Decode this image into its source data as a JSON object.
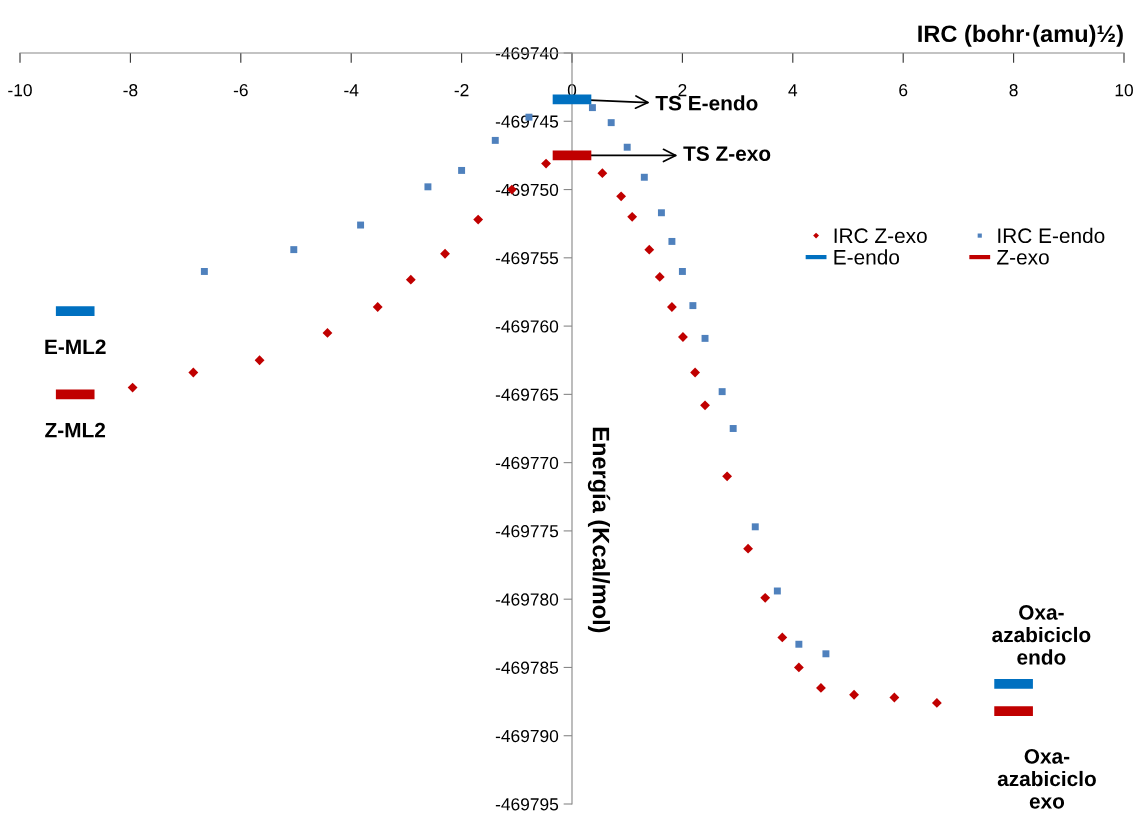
{
  "chart_data": {
    "type": "scatter",
    "xlabel": "IRC (bohr·(amu)½)",
    "ylabel": "Energía (Kcal/mol)",
    "xlim": [
      -10,
      10
    ],
    "xticks": [
      -10,
      -8,
      -6,
      -4,
      -2,
      0,
      2,
      4,
      6,
      8,
      10
    ],
    "ylim": [
      -469795,
      -469740
    ],
    "yticks": [
      -469795,
      -469790,
      -469785,
      -469780,
      -469775,
      -469770,
      -469765,
      -469760,
      -469755,
      -469750,
      -469745,
      -469740
    ],
    "legend": "right",
    "series": [
      {
        "name": "IRC Z-exo",
        "marker": "diamond",
        "color": "#c00000",
        "x": [
          -7.96,
          -6.86,
          -5.66,
          -4.43,
          -3.52,
          -2.92,
          -2.3,
          -1.7,
          -1.09,
          -0.47,
          0.55,
          0.89,
          1.09,
          1.4,
          1.59,
          1.81,
          2.01,
          2.23,
          2.41,
          2.81,
          3.19,
          3.5,
          3.81,
          4.11,
          4.51,
          5.11,
          5.84,
          6.61
        ],
        "values": [
          -469764.5,
          -469763.4,
          -469762.5,
          -469760.5,
          -469758.6,
          -469756.6,
          -469754.7,
          -469752.2,
          -469750.0,
          -469748.1,
          -469748.8,
          -469750.5,
          -469752.0,
          -469754.4,
          -469756.4,
          -469758.6,
          -469760.8,
          -469763.4,
          -469765.8,
          -469771.0,
          -469776.3,
          -469779.9,
          -469782.8,
          -469785.0,
          -469786.5,
          -469787.0,
          -469787.2,
          -469787.6
        ]
      },
      {
        "name": "E-endo",
        "type": "line",
        "color": "#0070c0",
        "x": [
          -0.35,
          0.35,
          null,
          -9.35,
          -8.65,
          null,
          7.65,
          8.35
        ],
        "values": [
          -469743.4,
          -469743.4,
          null,
          -469758.9,
          -469758.9,
          null,
          -469786.2,
          -469786.2
        ]
      },
      {
        "name": "IRC E-endo",
        "marker": "square",
        "color": "#4f81bd",
        "x": [
          -6.66,
          -5.04,
          -3.83,
          -2.61,
          -2.0,
          -1.39,
          -0.78,
          -0.18,
          0.37,
          0.71,
          1.0,
          1.31,
          1.62,
          1.81,
          2.0,
          2.19,
          2.41,
          2.72,
          2.92,
          3.32,
          3.72,
          4.11,
          4.6
        ],
        "values": [
          -469756.0,
          -469754.4,
          -469752.6,
          -469749.8,
          -469748.6,
          -469746.4,
          -469744.7,
          null,
          -469744.0,
          -469745.1,
          -469746.9,
          -469749.1,
          -469751.7,
          -469753.8,
          -469756.0,
          -469758.5,
          -469760.9,
          -469764.8,
          -469767.5,
          -469774.7,
          -469779.4,
          -469783.3,
          -469784.0
        ]
      },
      {
        "name": "Z-exo",
        "type": "line",
        "color": "#c00000",
        "x": [
          -0.35,
          0.35,
          null,
          -9.35,
          -8.65,
          null,
          7.65,
          8.35
        ],
        "values": [
          -469747.5,
          -469747.5,
          null,
          -469765.0,
          -469765.0,
          null,
          -469788.2,
          -469788.2
        ]
      }
    ],
    "annotations": [
      {
        "text": "TS E-endo",
        "x": 0,
        "y": -469743.4
      },
      {
        "text": "TS Z-exo",
        "x": 0,
        "y": -469747.5
      },
      {
        "text": "E-ML2",
        "x": -9,
        "y": -469758.9
      },
      {
        "text": "Z-ML2",
        "x": -9,
        "y": -469765.0
      },
      {
        "text": "Oxa-\nazabiciclo\nendo",
        "x": 8,
        "y": -469786.2
      },
      {
        "text": "Oxa-\nazabiciclo\nexo",
        "x": 8,
        "y": -469788.2
      }
    ]
  }
}
